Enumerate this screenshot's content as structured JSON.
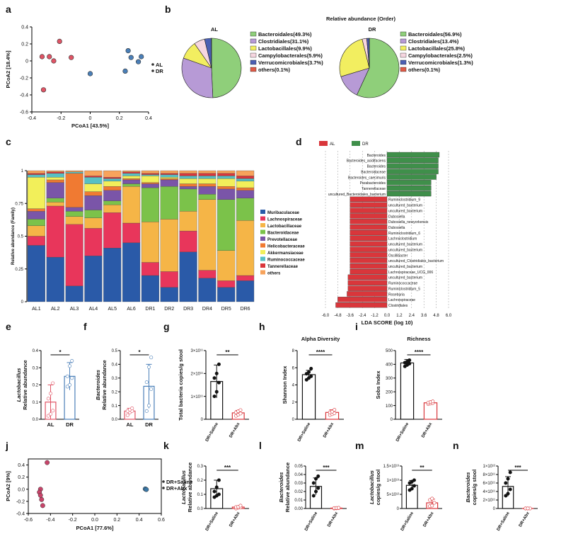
{
  "colors": {
    "al": "#e05465",
    "dr": "#4a7fb8",
    "saline": "#c8446a",
    "abx": "#3a78a8",
    "dots": "#111111",
    "abx_dots": "#e05465"
  },
  "panel_labels": [
    "a",
    "b",
    "c",
    "d",
    "e",
    "f",
    "g",
    "h",
    "i",
    "j",
    "k",
    "l",
    "m",
    "n"
  ],
  "chart_data": [
    {
      "id": "a",
      "type": "scatter",
      "xlabel": "PCoA1 [43.5%]",
      "ylabel": "PCoA2 [18.4%]",
      "xlim": [
        -0.4,
        0.4
      ],
      "ylim": [
        -0.6,
        0.4
      ],
      "xticks": [
        "-0.4",
        "-0.2",
        "0",
        "0.2",
        "0.4"
      ],
      "yticks": [
        "0.4",
        "0.2",
        "0",
        "-0.2",
        "-0.4",
        "-0.6"
      ],
      "series": [
        {
          "name": "AL",
          "color": "#e05465",
          "points": [
            [
              -0.33,
              0.05
            ],
            [
              -0.28,
              0.05
            ],
            [
              -0.25,
              0.0
            ],
            [
              -0.21,
              0.23
            ],
            [
              -0.13,
              0.04
            ],
            [
              -0.32,
              -0.34
            ]
          ]
        },
        {
          "name": "DR",
          "color": "#4a7fb8",
          "points": [
            [
              0.26,
              0.12
            ],
            [
              0.28,
              0.04
            ],
            [
              0.35,
              0.05
            ],
            [
              0.33,
              -0.01
            ],
            [
              0.24,
              -0.12
            ],
            [
              0.0,
              -0.15
            ]
          ]
        }
      ]
    },
    {
      "id": "b",
      "type": "pie",
      "title": "Relative abundance (Order)",
      "pies": [
        {
          "name": "AL",
          "slices": [
            {
              "label": "Bacteroidales(49.3%)",
              "value": 49.3,
              "color": "#8fcf7a"
            },
            {
              "label": "Clostridiales(31.1%)",
              "value": 31.1,
              "color": "#b79ad6"
            },
            {
              "label": "Lactobacillales(9.9%)",
              "value": 9.9,
              "color": "#f2ee60"
            },
            {
              "label": "Campylobacterales(5.9%)",
              "value": 5.9,
              "color": "#f6d6e0"
            },
            {
              "label": "Verrucomicrobiales(3.7%)",
              "value": 3.7,
              "color": "#4b5fb3"
            },
            {
              "label": "others(0.1%)",
              "value": 0.1,
              "color": "#e05a47"
            }
          ]
        },
        {
          "name": "DR",
          "slices": [
            {
              "label": "Bacteroidales(56.9%)",
              "value": 56.9,
              "color": "#8fcf7a"
            },
            {
              "label": "Clostridiales(13.4%)",
              "value": 13.4,
              "color": "#b79ad6"
            },
            {
              "label": "Lactobacillales(25.8%)",
              "value": 25.8,
              "color": "#f2ee60"
            },
            {
              "label": "Campylobacterales(2.5%)",
              "value": 2.5,
              "color": "#f6d6e0"
            },
            {
              "label": "Verrucomicrobiales(1.3%)",
              "value": 1.3,
              "color": "#4b5fb3"
            },
            {
              "label": "others(0.1%)",
              "value": 0.1,
              "color": "#e05a47"
            }
          ]
        }
      ]
    },
    {
      "id": "c",
      "type": "bar",
      "stacked": true,
      "ylabel": "Relative abundance (Family)",
      "ylim": [
        0,
        1
      ],
      "yticks": [
        "0",
        "0.25",
        "0.5",
        "0.75",
        "1"
      ],
      "categories": [
        "AL1",
        "AL2",
        "AL3",
        "AL4",
        "AL5",
        "AL6",
        "DR1",
        "DR2",
        "DR3",
        "DR4",
        "DR5",
        "DR6"
      ],
      "series": [
        {
          "name": "Muribaculaceae",
          "color": "#2a5aa8",
          "values": [
            0.43,
            0.34,
            0.12,
            0.35,
            0.41,
            0.45,
            0.2,
            0.11,
            0.38,
            0.18,
            0.11,
            0.16
          ]
        },
        {
          "name": "Lachnospiraceae",
          "color": "#e8365b",
          "values": [
            0.07,
            0.39,
            0.47,
            0.21,
            0.27,
            0.15,
            0.1,
            0.12,
            0.16,
            0.06,
            0.05,
            0.04
          ]
        },
        {
          "name": "Lactobacillaceae",
          "color": "#f5b547",
          "values": [
            0.08,
            0.03,
            0.06,
            0.08,
            0.06,
            0.28,
            0.31,
            0.4,
            0.15,
            0.54,
            0.23,
            0.42
          ]
        },
        {
          "name": "Bacteroidaceae",
          "color": "#7bc24a",
          "values": [
            0.05,
            0.03,
            0.04,
            0.06,
            0.03,
            0.02,
            0.26,
            0.25,
            0.17,
            0.04,
            0.39,
            0.17
          ]
        },
        {
          "name": "Prevotellaceae",
          "color": "#7a55a8",
          "values": [
            0.06,
            0.12,
            0.03,
            0.11,
            0.08,
            0.03,
            0.03,
            0.05,
            0.02,
            0.06,
            0.08,
            0.06
          ]
        },
        {
          "name": "Helicobacteraceae",
          "color": "#f07a32",
          "values": [
            0.02,
            0.02,
            0.26,
            0.03,
            0.03,
            0.01,
            0.01,
            0.01,
            0.02,
            0.02,
            0.02,
            0.02
          ]
        },
        {
          "name": "Akkermansiaceae",
          "color": "#f2ef5a",
          "values": [
            0.24,
            0.02,
            0.0,
            0.06,
            0.04,
            0.02,
            0.05,
            0.01,
            0.04,
            0.04,
            0.06,
            0.05
          ]
        },
        {
          "name": "Ruminococcaceae",
          "color": "#57c0c4",
          "values": [
            0.02,
            0.03,
            0.01,
            0.05,
            0.02,
            0.02,
            0.01,
            0.02,
            0.02,
            0.02,
            0.02,
            0.02
          ]
        },
        {
          "name": "Tannerellaceae",
          "color": "#d9363b",
          "values": [
            0.01,
            0.01,
            0.0,
            0.01,
            0.01,
            0.01,
            0.01,
            0.01,
            0.02,
            0.02,
            0.02,
            0.02
          ]
        },
        {
          "name": "others",
          "color": "#f7a35c",
          "values": [
            0.02,
            0.01,
            0.01,
            0.04,
            0.05,
            0.01,
            0.02,
            0.02,
            0.02,
            0.02,
            0.02,
            0.04
          ]
        }
      ]
    },
    {
      "id": "d",
      "type": "bar",
      "orientation": "horizontal",
      "xlabel": "LDA SCORE (log 10)",
      "xlim": [
        -6.0,
        6.0
      ],
      "xticks": [
        "-6.0",
        "-4.8",
        "-3.6",
        "-2.4",
        "-1.2",
        "0.0",
        "1.2",
        "2.4",
        "3.6",
        "4.8",
        "6.0"
      ],
      "legend": [
        {
          "name": "AL",
          "color": "#d9363b"
        },
        {
          "name": "DR",
          "color": "#3f8f4a"
        }
      ],
      "bars": [
        {
          "label": "Bacteroides",
          "value": 5.1,
          "group": "DR"
        },
        {
          "label": "Bacteroides_acidifaciens",
          "value": 5.0,
          "group": "DR"
        },
        {
          "label": "Bacteroides",
          "value": 5.0,
          "group": "DR"
        },
        {
          "label": "Bacteroidaceae",
          "value": 5.0,
          "group": "DR"
        },
        {
          "label": "Bacteroides_caecimuris",
          "value": 4.8,
          "group": "DR"
        },
        {
          "label": "Parabacteroides",
          "value": 4.3,
          "group": "DR"
        },
        {
          "label": "Tannerellaceae",
          "value": 4.3,
          "group": "DR"
        },
        {
          "label": "uncultured_Bacteroidales_bacterium",
          "value": 4.3,
          "group": "DR"
        },
        {
          "label": "Ruminiclostridium_9",
          "value": -3.6,
          "group": "AL"
        },
        {
          "label": "uncultured_bacterium",
          "value": -3.6,
          "group": "AL"
        },
        {
          "label": "uncultured_bacterium",
          "value": -3.6,
          "group": "AL"
        },
        {
          "label": "Dubosiella",
          "value": -3.6,
          "group": "AL"
        },
        {
          "label": "Dubosiella_newyorkensis",
          "value": -3.6,
          "group": "AL"
        },
        {
          "label": "Dubosiella",
          "value": -3.6,
          "group": "AL"
        },
        {
          "label": "Ruminiclostridium_6",
          "value": -3.6,
          "group": "AL"
        },
        {
          "label": "Lachnoclostridium",
          "value": -3.6,
          "group": "AL"
        },
        {
          "label": "uncultured_bacterium",
          "value": -3.6,
          "group": "AL"
        },
        {
          "label": "uncultured_bacterium",
          "value": -3.6,
          "group": "AL"
        },
        {
          "label": "Oscillibacter",
          "value": -3.6,
          "group": "AL"
        },
        {
          "label": "uncultured_Clostridiales_bacterium",
          "value": -3.6,
          "group": "AL"
        },
        {
          "label": "uncultured_bacterium",
          "value": -3.6,
          "group": "AL"
        },
        {
          "label": "Lachnospiraceae_UCG_006",
          "value": -3.6,
          "group": "AL"
        },
        {
          "label": "uncultured_bacterium",
          "value": -3.8,
          "group": "AL"
        },
        {
          "label": "Ruminococcaceae",
          "value": -3.8,
          "group": "AL"
        },
        {
          "label": "Ruminiclostridium_5",
          "value": -3.8,
          "group": "AL"
        },
        {
          "label": "Roseburia",
          "value": -3.9,
          "group": "AL"
        },
        {
          "label": "Lachnospiraceae",
          "value": -4.8,
          "group": "AL"
        },
        {
          "label": "Clostridiales",
          "value": -5.0,
          "group": "AL"
        }
      ]
    },
    {
      "id": "e",
      "type": "bar",
      "ylabel_italic": "Lactobacillus",
      "ylabel": "Relative abundance",
      "ylim": [
        0,
        0.4
      ],
      "yticks": [
        "0.0",
        "0.1",
        "0.2",
        "0.3",
        "0.4"
      ],
      "categories": [
        "AL",
        "DR"
      ],
      "values": [
        0.1,
        0.25
      ],
      "err": [
        0.1,
        0.08
      ],
      "points": [
        [
          0.02,
          0.03,
          0.05,
          0.12,
          0.15,
          0.21
        ],
        [
          0.19,
          0.2,
          0.24,
          0.25,
          0.31,
          0.34
        ]
      ],
      "sig": "*"
    },
    {
      "id": "f",
      "type": "bar",
      "ylabel_italic": "Bacteroides",
      "ylabel": "Relative abundance",
      "ylim": [
        0,
        0.5
      ],
      "yticks": [
        "0.0",
        "0.1",
        "0.2",
        "0.3",
        "0.4",
        "0.5"
      ],
      "categories": [
        "AL",
        "DR"
      ],
      "values": [
        0.06,
        0.24
      ],
      "err": [
        0.02,
        0.16
      ],
      "points": [
        [
          0.03,
          0.05,
          0.06,
          0.06,
          0.07,
          0.08
        ],
        [
          0.06,
          0.1,
          0.22,
          0.27,
          0.38,
          0.45
        ]
      ],
      "sig": "*"
    },
    {
      "id": "g",
      "type": "bar",
      "ylabel": "Total bacteria copies/g stool",
      "ylim": [
        0,
        300000000000.0
      ],
      "ylim_label": "3×10¹¹",
      "yticks": [
        "0",
        "1×10¹¹",
        "2×10¹¹",
        "3×10¹¹"
      ],
      "categories": [
        "DR+Saline",
        "DR+Abx"
      ],
      "values": [
        165000000000.0,
        28000000000.0
      ],
      "err": [
        72000000000.0,
        10000000000.0
      ],
      "points": [
        [
          100000000000.0,
          120000000000.0,
          160000000000.0,
          180000000000.0,
          200000000000.0,
          240000000000.0
        ],
        [
          15000000000.0,
          20000000000.0,
          25000000000.0,
          30000000000.0,
          35000000000.0,
          40000000000.0
        ]
      ],
      "sig": "**"
    },
    {
      "id": "h",
      "type": "bar",
      "title": "Alpha Diversity",
      "ylabel": "Shannon Index",
      "ylim": [
        0,
        8
      ],
      "yticks": [
        "0",
        "2",
        "4",
        "6",
        "8"
      ],
      "categories": [
        "DR+Saline",
        "DR+Abx"
      ],
      "values": [
        5.2,
        0.8
      ],
      "err": [
        0.5,
        0.3
      ],
      "points": [
        [
          4.6,
          4.8,
          5.0,
          5.3,
          5.5,
          5.9
        ],
        [
          0.5,
          0.6,
          0.7,
          0.8,
          0.9,
          1.1
        ]
      ],
      "sig": "****"
    },
    {
      "id": "i",
      "type": "bar",
      "title": "Richness",
      "ylabel": "Sobs Index",
      "ylim": [
        0,
        500
      ],
      "yticks": [
        "0",
        "100",
        "200",
        "300",
        "400",
        "500"
      ],
      "categories": [
        "DR+Saline",
        "DR+Abx"
      ],
      "values": [
        410,
        120
      ],
      "err": [
        25,
        10
      ],
      "points": [
        [
          385,
          395,
          405,
          412,
          420,
          430
        ],
        [
          110,
          115,
          118,
          122,
          126,
          130
        ]
      ],
      "sig": "****"
    },
    {
      "id": "j",
      "type": "scatter",
      "xlabel": "PCoA1 [77.6%]",
      "ylabel": "PCoA2 [9%]",
      "xlim": [
        -0.6,
        0.6
      ],
      "ylim": [
        -0.4,
        0.5
      ],
      "xticks": [
        "-0.6",
        "-0.4",
        "-0.2",
        "0.0",
        "0.2",
        "0.4",
        "0.6"
      ],
      "yticks": [
        "0.4",
        "0.2",
        "0.0",
        "-0.2",
        "-0.4"
      ],
      "series": [
        {
          "name": "DR+Saline",
          "color": "#c8446a",
          "points": [
            [
              -0.43,
              0.44
            ],
            [
              -0.49,
              0.0
            ],
            [
              -0.5,
              -0.05
            ],
            [
              -0.49,
              -0.1
            ],
            [
              -0.48,
              -0.17
            ],
            [
              -0.47,
              -0.27
            ]
          ]
        },
        {
          "name": "DR+Abx",
          "color": "#3a78a8",
          "points": [
            [
              0.46,
              0.0
            ],
            [
              0.455,
              0.005
            ],
            [
              0.465,
              -0.005
            ]
          ]
        }
      ]
    },
    {
      "id": "k",
      "type": "bar",
      "ylabel_italic": "Lactobacillus",
      "ylabel": "Relative abundance",
      "ylim": [
        0,
        0.3
      ],
      "yticks": [
        "0.0",
        "0.1",
        "0.2",
        "0.3"
      ],
      "categories": [
        "DR+Saline",
        "DR+Abx"
      ],
      "values": [
        0.14,
        0.01
      ],
      "err": [
        0.06,
        0.006
      ],
      "points": [
        [
          0.08,
          0.09,
          0.1,
          0.12,
          0.15,
          0.2
        ],
        [
          0.0,
          0.005,
          0.008,
          0.01,
          0.012,
          0.02
        ]
      ],
      "sig": "***"
    },
    {
      "id": "l",
      "type": "bar",
      "ylabel_italic": "Bacteroides",
      "ylabel": "Relative abundance",
      "ylim": [
        0,
        0.05
      ],
      "yticks": [
        "0.00",
        "0.01",
        "0.02",
        "0.03",
        "0.04",
        "0.05"
      ],
      "categories": [
        "DR+Saline",
        "DR+Abx"
      ],
      "values": [
        0.026,
        0.0005
      ],
      "err": [
        0.01,
        0.0003
      ],
      "points": [
        [
          0.015,
          0.02,
          0.024,
          0.03,
          0.035,
          0.038
        ],
        [
          0.0,
          0.0002,
          0.0004,
          0.0005,
          0.0006,
          0.0008
        ]
      ],
      "sig": "***"
    },
    {
      "id": "m",
      "type": "bar",
      "ylabel_italic": "Lactobacillus",
      "ylabel": "copies/g stool",
      "ylim": [
        0,
        15000000000000.0
      ],
      "yticks": [
        "0",
        "5×10¹²",
        "1×10¹³",
        "1.5×10¹³"
      ],
      "categories": [
        "DR+Saline",
        "DR+Abx"
      ],
      "values": [
        8200000000000.0,
        2000000000000.0
      ],
      "err": [
        1700000000000.0,
        1300000000000.0
      ],
      "points": [
        [
          6500000000000.0,
          7000000000000.0,
          8000000000000.0,
          9000000000000.0,
          9500000000000.0,
          10000000000000.0
        ],
        [
          800000000000.0,
          1000000000000.0,
          2000000000000.0,
          3000000000000.0,
          3500000000000.0
        ]
      ],
      "sig": "**"
    },
    {
      "id": "n",
      "type": "bar",
      "ylabel_italic": "Bacteroides",
      "ylabel": "copies/g stool",
      "ylim": [
        0,
        1000000000000.0
      ],
      "yticks": [
        "0",
        "2×10¹¹",
        "4×10¹¹",
        "6×10¹¹",
        "8×10¹¹",
        "1×10¹²"
      ],
      "categories": [
        "DR+Saline",
        "DR+Abx"
      ],
      "values": [
        520000000000.0,
        1000000000.0
      ],
      "err": [
        230000000000.0,
        1000000000.0
      ],
      "points": [
        [
          300000000000.0,
          350000000000.0,
          450000000000.0,
          600000000000.0,
          700000000000.0,
          850000000000.0
        ],
        [
          0.0,
          500000000.0,
          1000000000.0,
          1500000000.0,
          2000000000.0
        ]
      ],
      "sig": "***"
    }
  ]
}
